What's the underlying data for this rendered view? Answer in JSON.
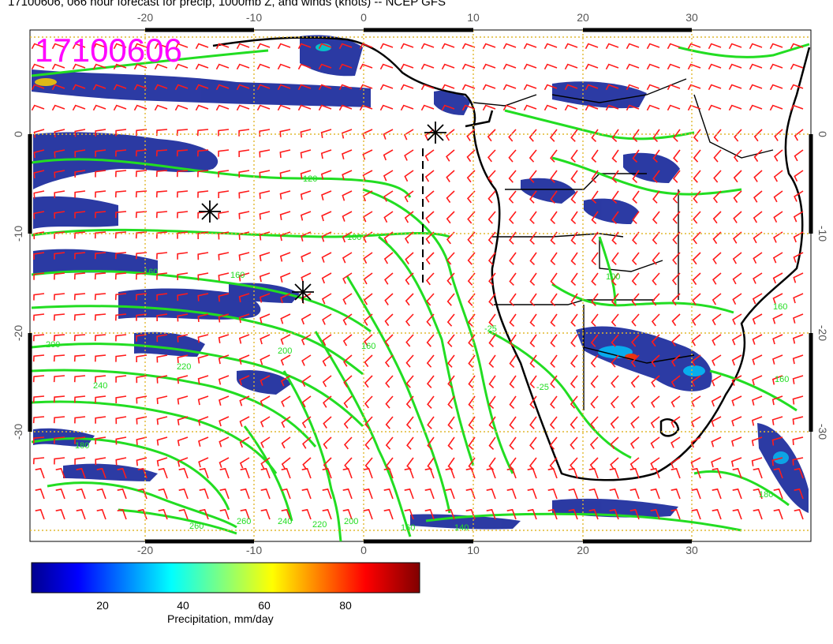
{
  "header": {
    "title": "17100606, 066 hour forecast for precip, 1000mb Z, and winds (knots) -- NCEP GFS"
  },
  "map": {
    "stamp": "17100606",
    "lon_ticks": [
      "-20",
      "-10",
      "0",
      "10",
      "20",
      "30"
    ],
    "lat_ticks": [
      "0",
      "-10",
      "-20",
      "-30"
    ],
    "contour_labels": [
      "100",
      "120",
      "160",
      "180",
      "200",
      "220",
      "240",
      "260",
      "180",
      "140",
      "160",
      "-20",
      "-25",
      "-25"
    ]
  },
  "colorbar": {
    "ticks": [
      "20",
      "40",
      "60",
      "80"
    ],
    "label": "Precipitation, mm/day"
  },
  "colors": {
    "stamp": "#ff00ff",
    "wind_barb": "#ff1a1a",
    "contour": "#22dd22",
    "grid": "#ddbb33",
    "precip_low": "#0a1a8a",
    "precip_high": "#7a0000"
  }
}
